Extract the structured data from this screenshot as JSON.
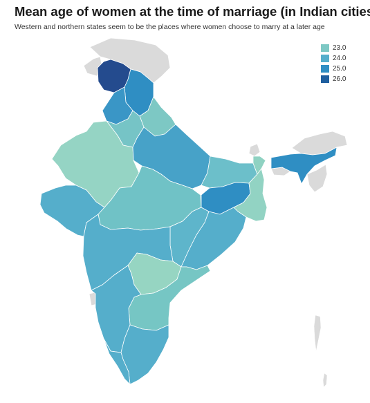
{
  "title": "Mean age of women at the time of marriage (in Indian cities)",
  "subtitle": "Western and northern states seem to be the places where women choose to marry at a later age",
  "legend": [
    {
      "label": "23.0",
      "color": "#7dc8c4"
    },
    {
      "label": "24.0",
      "color": "#55aecb"
    },
    {
      "label": "25.0",
      "color": "#2f8ec3"
    },
    {
      "label": "26.0",
      "color": "#1f5f9f"
    }
  ],
  "colors": {
    "no_data": "#dadada",
    "border": "#ffffff"
  }
}
